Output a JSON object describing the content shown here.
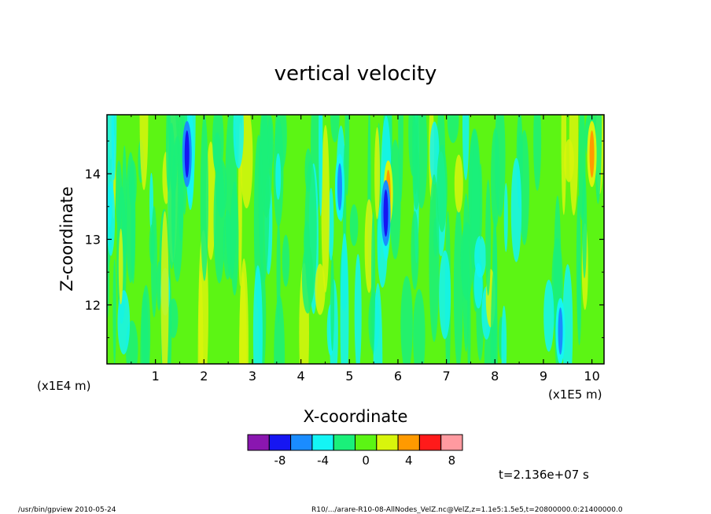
{
  "chart_data": {
    "type": "heatmap",
    "title": "vertical velocity",
    "xlabel": "X-coordinate",
    "ylabel": "Z-coordinate",
    "x_unit": "(x1E5 m)",
    "y_unit": "(x1E4 m)",
    "xlim": [
      0,
      10.25
    ],
    "ylim": [
      11.1,
      14.9
    ],
    "x_ticks": [
      "1",
      "2",
      "3",
      "4",
      "5",
      "6",
      "7",
      "8",
      "9",
      "10"
    ],
    "y_ticks": [
      "12",
      "13",
      "14"
    ],
    "colorbar": {
      "levels": [
        -10,
        -8,
        -6,
        -4,
        -2,
        0,
        2,
        4,
        6,
        8,
        10
      ],
      "tick_labels": [
        "-8",
        "-4",
        "0",
        "4",
        "8"
      ],
      "colors": [
        "#8a16b0",
        "#1616f2",
        "#1a8cff",
        "#14f5f5",
        "#1af07a",
        "#5cf514",
        "#d8f50c",
        "#ff9a00",
        "#ff1a1a",
        "#ff9aa0"
      ]
    },
    "background_color": "#5cf514",
    "features": [
      {
        "x": 5.8,
        "z": 13.7,
        "value": 5,
        "note": "strong positive"
      },
      {
        "x": 5.75,
        "z": 13.4,
        "value": -7,
        "note": "strong negative"
      },
      {
        "x": 10.0,
        "z": 14.3,
        "value": 5,
        "note": "positive near right edge"
      },
      {
        "x": 1.65,
        "z": 14.3,
        "value": -7,
        "note": "negative"
      },
      {
        "x": 4.8,
        "z": 13.8,
        "value": -6,
        "note": "negative"
      },
      {
        "x": 9.35,
        "z": 11.6,
        "value": -6,
        "note": "negative"
      }
    ]
  },
  "time_label": "t=2.136e+07 s",
  "footer": {
    "left": "/usr/bin/gpview  2010-05-24",
    "right": "R10/.../arare-R10-08-AllNodes_VelZ.nc@VelZ,z=1.1e5:1.5e5,t=20800000.0:21400000.0"
  }
}
